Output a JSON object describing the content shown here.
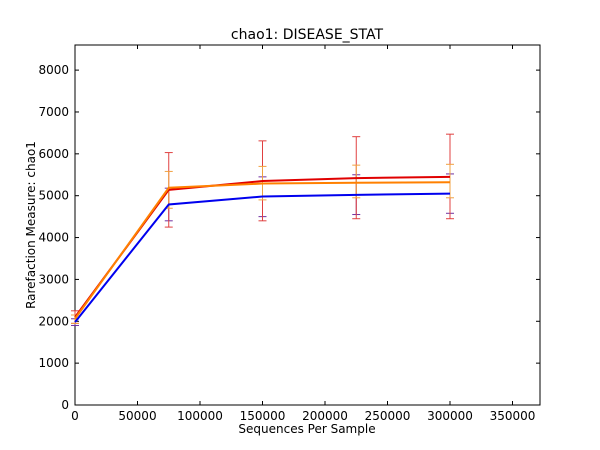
{
  "chart_data": {
    "type": "line",
    "title": "chao1: DISEASE_STAT",
    "xlabel": "Sequences Per Sample",
    "ylabel": "Rarefaction Measure: chao1",
    "xlim": [
      0,
      372000
    ],
    "ylim": [
      0,
      8600
    ],
    "xticks": [
      0,
      50000,
      100000,
      150000,
      200000,
      250000,
      300000,
      350000
    ],
    "yticks": [
      0,
      1000,
      2000,
      3000,
      4000,
      5000,
      6000,
      7000,
      8000
    ],
    "grid": false,
    "legend": "none",
    "x": [
      10,
      75000,
      150000,
      225000,
      300000
    ],
    "series": [
      {
        "color": "#0000ee",
        "values": [
          1980,
          4790,
          4980,
          5020,
          5050
        ],
        "err_low": [
          1900,
          4400,
          4500,
          4550,
          4580
        ],
        "err_high": [
          2060,
          5180,
          5450,
          5500,
          5520
        ],
        "errcolor": "#7030a0"
      },
      {
        "color": "#e00000",
        "values": [
          2100,
          5140,
          5350,
          5420,
          5450
        ],
        "err_low": [
          1950,
          4250,
          4400,
          4450,
          4450
        ],
        "err_high": [
          2250,
          6030,
          6310,
          6410,
          6470
        ],
        "errcolor": "#e04040"
      },
      {
        "color": "#ff8000",
        "values": [
          2060,
          5190,
          5290,
          5310,
          5320
        ],
        "err_low": [
          1950,
          4700,
          4900,
          4950,
          4950
        ],
        "err_high": [
          2150,
          5580,
          5700,
          5730,
          5750
        ],
        "errcolor": "#f0a040"
      }
    ]
  }
}
